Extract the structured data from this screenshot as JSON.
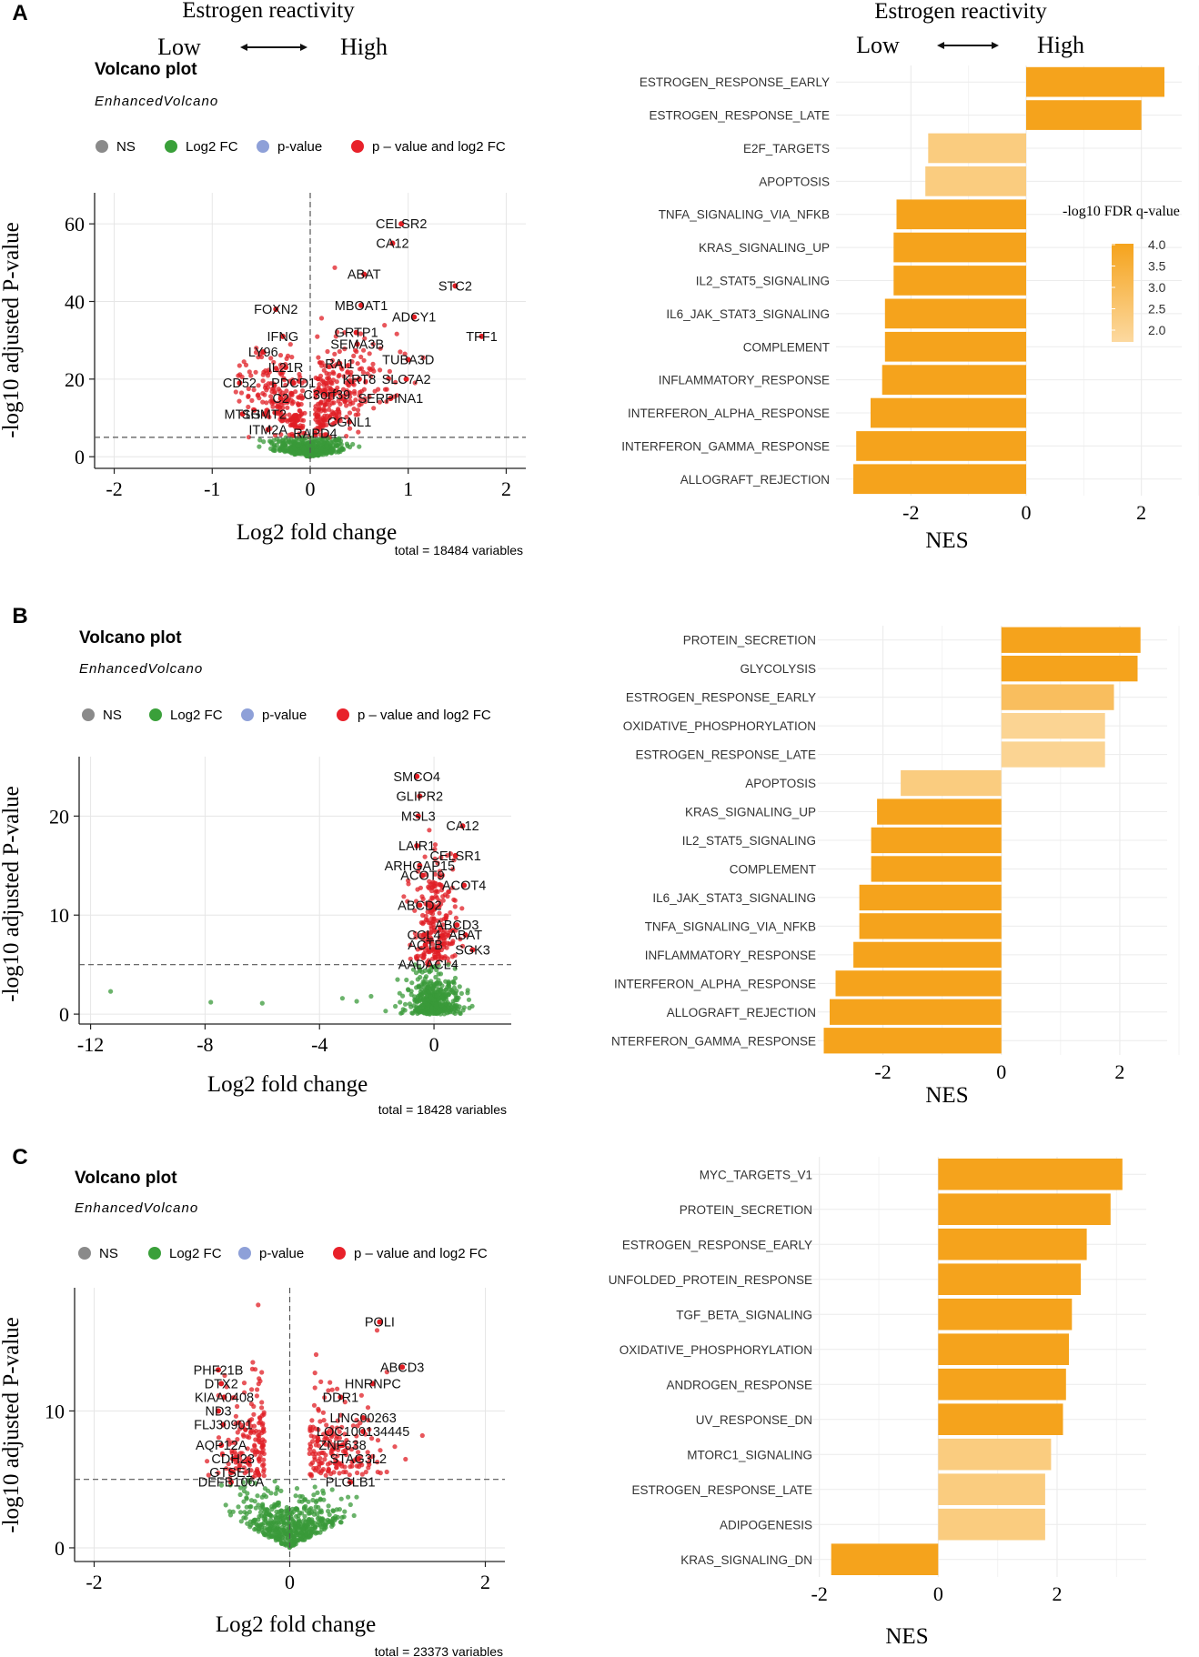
{
  "header": {
    "estrogen_reactivity": "Estrogen reactivity",
    "low": "Low",
    "high": "High"
  },
  "panels": [
    {
      "letter": "A",
      "volcano": {
        "title": "Volcano plot",
        "subtitle": "EnhancedVolcano",
        "legend": [
          "NS",
          "Log2 FC",
          "p-value",
          "p – value and log2 FC"
        ],
        "xlabel": "Log2 fold change",
        "ylabel": "-log10 adjusted P-value",
        "caption": "total = 18484 variables",
        "xlim": [
          -2.2,
          2.2
        ],
        "ylim": [
          -3,
          68
        ],
        "xticks": [
          -2,
          -1,
          0,
          1,
          2
        ],
        "xtick_labels": [
          "-2",
          "-1",
          "0",
          "1",
          "2"
        ],
        "yticks": [
          0,
          20,
          40,
          60
        ],
        "ytick_labels": [
          "0",
          "20",
          "40",
          "60"
        ],
        "threshold_y": 5,
        "threshold_x": 0,
        "gene_labels": [
          {
            "label": "CELSR2",
            "x": 0.93,
            "y": 60
          },
          {
            "label": "CA12",
            "x": 0.84,
            "y": 55
          },
          {
            "label": "ABAT",
            "x": 0.55,
            "y": 47
          },
          {
            "label": "STC2",
            "x": 1.48,
            "y": 44
          },
          {
            "label": "FOXN2",
            "x": -0.35,
            "y": 38
          },
          {
            "label": "MBOAT1",
            "x": 0.52,
            "y": 39
          },
          {
            "label": "ADCY1",
            "x": 1.06,
            "y": 36
          },
          {
            "label": "TFF1",
            "x": 1.75,
            "y": 31
          },
          {
            "label": "IFNG",
            "x": -0.28,
            "y": 31
          },
          {
            "label": "GRTP1",
            "x": 0.47,
            "y": 32
          },
          {
            "label": "SEMA3B",
            "x": 0.48,
            "y": 29
          },
          {
            "label": "LY96",
            "x": -0.48,
            "y": 27
          },
          {
            "label": "TUBA3D",
            "x": 1.0,
            "y": 25
          },
          {
            "label": "IL21R",
            "x": -0.25,
            "y": 23
          },
          {
            "label": "RAI1",
            "x": 0.3,
            "y": 24
          },
          {
            "label": "KRT8",
            "x": 0.5,
            "y": 20
          },
          {
            "label": "SLC7A2",
            "x": 0.98,
            "y": 20
          },
          {
            "label": "CD52",
            "x": -0.72,
            "y": 19
          },
          {
            "label": "PDCD1",
            "x": -0.17,
            "y": 19
          },
          {
            "label": "C2",
            "x": -0.3,
            "y": 15
          },
          {
            "label": "C3orf39",
            "x": 0.17,
            "y": 16
          },
          {
            "label": "SERPINA1",
            "x": 0.82,
            "y": 15
          },
          {
            "label": "MT1G",
            "x": -0.69,
            "y": 11
          },
          {
            "label": "SHMT2",
            "x": -0.47,
            "y": 11
          },
          {
            "label": "CGNL1",
            "x": 0.4,
            "y": 9
          },
          {
            "label": "ITM2A",
            "x": -0.43,
            "y": 7
          },
          {
            "label": "RAPD4",
            "x": 0.05,
            "y": 6
          }
        ]
      },
      "gsea": {
        "xlabel": "NES",
        "xlim": [
          -3.3,
          2.7
        ],
        "xticks": [
          -2,
          0,
          2
        ],
        "xtick_labels": [
          "-2",
          "0",
          "2"
        ],
        "legend_title": "-log10 FDR q-value",
        "legend_ticks": [
          "4.0",
          "3.5",
          "3.0",
          "2.5",
          "2.0"
        ],
        "categories": [
          "ESTROGEN_RESPONSE_EARLY",
          "ESTROGEN_RESPONSE_LATE",
          "E2F_TARGETS",
          "APOPTOSIS",
          "TNFA_SIGNALING_VIA_NFKB",
          "KRAS_SIGNALING_UP",
          "IL2_STAT5_SIGNALING",
          "IL6_JAK_STAT3_SIGNALING",
          "COMPLEMENT",
          "INFLAMMATORY_RESPONSE",
          "INTERFERON_ALPHA_RESPONSE",
          "INTERFERON_GAMMA_RESPONSE",
          "ALLOGRAFT_REJECTION"
        ],
        "values": [
          2.4,
          2.0,
          -1.7,
          -1.75,
          -2.25,
          -2.3,
          -2.3,
          -2.45,
          -2.45,
          -2.5,
          -2.7,
          -2.95,
          -3.0
        ],
        "fdr": [
          4.0,
          4.0,
          2.5,
          2.5,
          4.0,
          4.0,
          4.0,
          4.0,
          4.0,
          4.0,
          4.0,
          4.0,
          4.0
        ]
      }
    },
    {
      "letter": "B",
      "volcano": {
        "title": "Volcano plot",
        "subtitle": "EnhancedVolcano",
        "legend": [
          "NS",
          "Log2 FC",
          "p-value",
          "p – value and log2 FC"
        ],
        "xlabel": "Log2 fold change",
        "ylabel": "-log10 adjusted P-value",
        "caption": "total = 18428 variables",
        "xlim": [
          -12.4,
          2.7
        ],
        "ylim": [
          -1,
          26
        ],
        "xticks": [
          -12,
          -8,
          -4,
          0
        ],
        "xtick_labels": [
          "-12",
          "-8",
          "-4",
          "0"
        ],
        "yticks": [
          0,
          10,
          20
        ],
        "ytick_labels": [
          "0",
          "10",
          "20"
        ],
        "threshold_y": 5,
        "threshold_x": null,
        "gene_labels": [
          {
            "label": "SMCO4",
            "x": -0.6,
            "y": 24
          },
          {
            "label": "GLIPR2",
            "x": -0.5,
            "y": 22
          },
          {
            "label": "MSL3",
            "x": -0.55,
            "y": 20
          },
          {
            "label": "CA12",
            "x": 1.0,
            "y": 19
          },
          {
            "label": "LAIR1",
            "x": -0.6,
            "y": 17
          },
          {
            "label": "CELSR1",
            "x": 0.75,
            "y": 16
          },
          {
            "label": "ARHGAP15",
            "x": -0.5,
            "y": 15
          },
          {
            "label": "ACOT9",
            "x": -0.4,
            "y": 14
          },
          {
            "label": "ACOT4",
            "x": 1.05,
            "y": 13
          },
          {
            "label": "ABCD2",
            "x": -0.5,
            "y": 11
          },
          {
            "label": "ABCD3",
            "x": 0.8,
            "y": 9
          },
          {
            "label": "CCL4",
            "x": -0.35,
            "y": 8
          },
          {
            "label": "ABAT",
            "x": 1.1,
            "y": 8
          },
          {
            "label": "ACTB",
            "x": -0.3,
            "y": 7
          },
          {
            "label": "SGK3",
            "x": 1.35,
            "y": 6.5
          },
          {
            "label": "AADACL4",
            "x": -0.2,
            "y": 5
          }
        ]
      },
      "gsea": {
        "xlabel": "NES",
        "xlim": [
          -3.1,
          2.8
        ],
        "xticks": [
          -2,
          0,
          2
        ],
        "xtick_labels": [
          "-2",
          "0",
          "2"
        ],
        "categories": [
          "PROTEIN_SECRETION",
          "GLYCOLYSIS",
          "ESTROGEN_RESPONSE_EARLY",
          "OXIDATIVE_PHOSPHORYLATION",
          "ESTROGEN_RESPONSE_LATE",
          "APOPTOSIS",
          "KRAS_SIGNALING_UP",
          "IL2_STAT5_SIGNALING",
          "COMPLEMENT",
          "IL6_JAK_STAT3_SIGNALING",
          "TNFA_SIGNALING_VIA_NFKB",
          "INFLAMMATORY_RESPONSE",
          "INTERFERON_ALPHA_RESPONSE",
          "ALLOGRAFT_REJECTION",
          "NTERFERON_GAMMA_RESPONSE"
        ],
        "values": [
          2.35,
          2.3,
          1.9,
          1.75,
          1.75,
          -1.7,
          -2.1,
          -2.2,
          -2.2,
          -2.4,
          -2.4,
          -2.5,
          -2.8,
          -2.9,
          -3.0
        ],
        "fdr": [
          4.0,
          4.0,
          3.0,
          2.2,
          2.2,
          2.5,
          4.0,
          4.0,
          4.0,
          4.0,
          4.0,
          4.0,
          4.0,
          4.0,
          4.0
        ]
      }
    },
    {
      "letter": "C",
      "volcano": {
        "title": "Volcano plot",
        "subtitle": "EnhancedVolcano",
        "legend": [
          "NS",
          "Log2 FC",
          "p-value",
          "p – value and log2 FC"
        ],
        "xlabel": "Log2 fold change",
        "ylabel": "-log10 adjusted P-value",
        "caption": "total = 23373 variables",
        "xlim": [
          -2.2,
          2.2
        ],
        "ylim": [
          -1,
          19
        ],
        "xticks": [
          -2,
          0,
          2
        ],
        "xtick_labels": [
          "-2",
          "0",
          "2"
        ],
        "yticks": [
          0,
          10
        ],
        "ytick_labels": [
          "0",
          "10"
        ],
        "threshold_y": 5,
        "threshold_x": 0,
        "gene_labels": [
          {
            "label": "POLI",
            "x": 0.92,
            "y": 16.5
          },
          {
            "label": "PHF21B",
            "x": -0.73,
            "y": 13
          },
          {
            "label": "ABCD3",
            "x": 1.15,
            "y": 13.2
          },
          {
            "label": "DTX2",
            "x": -0.7,
            "y": 12
          },
          {
            "label": "HNRNPC",
            "x": 0.85,
            "y": 12
          },
          {
            "label": "KIAA0408",
            "x": -0.67,
            "y": 11
          },
          {
            "label": "DDR1",
            "x": 0.52,
            "y": 11
          },
          {
            "label": "ND3",
            "x": -0.73,
            "y": 10
          },
          {
            "label": "LINC00263",
            "x": 0.75,
            "y": 9.5
          },
          {
            "label": "FLJ30901",
            "x": -0.68,
            "y": 9
          },
          {
            "label": "LOC100134445",
            "x": 0.75,
            "y": 8.5
          },
          {
            "label": "ZNF638",
            "x": 0.54,
            "y": 7.5
          },
          {
            "label": "AQP12A",
            "x": -0.7,
            "y": 7.5
          },
          {
            "label": "CDH23",
            "x": -0.58,
            "y": 6.5
          },
          {
            "label": "STAG3L2",
            "x": 0.7,
            "y": 6.5
          },
          {
            "label": "GTSE1",
            "x": -0.6,
            "y": 5.5
          },
          {
            "label": "DEFB106A",
            "x": -0.6,
            "y": 4.8
          },
          {
            "label": "PLGLB1",
            "x": 0.62,
            "y": 4.8
          }
        ]
      },
      "gsea": {
        "xlabel": "NES",
        "xlim": [
          -2.5,
          3.5
        ],
        "xticks": [
          -2,
          0,
          2
        ],
        "xtick_labels": [
          "-2",
          "0",
          "2"
        ],
        "categories": [
          "MYC_TARGETS_V1",
          "PROTEIN_SECRETION",
          "ESTROGEN_RESPONSE_EARLY",
          "UNFOLDED_PROTEIN_RESPONSE",
          "TGF_BETA_SIGNALING",
          "OXIDATIVE_PHOSPHORYLATION",
          "ANDROGEN_RESPONSE",
          "UV_RESPONSE_DN",
          "MTORC1_SIGNALING",
          "ESTROGEN_RESPONSE_LATE",
          "ADIPOGENESIS",
          "KRAS_SIGNALING_DN"
        ],
        "values": [
          3.1,
          2.9,
          2.5,
          2.4,
          2.25,
          2.2,
          2.15,
          2.1,
          1.9,
          1.8,
          1.8,
          -1.8
        ],
        "fdr": [
          4.0,
          4.0,
          4.0,
          4.0,
          4.0,
          4.0,
          4.0,
          4.0,
          2.5,
          2.5,
          2.5,
          4.0
        ]
      }
    }
  ],
  "colors": {
    "ns": "#8a8a8a",
    "log2fc": "#3aa03a",
    "pvalue": "#8ea0d8",
    "both": "#e8212a",
    "green_points": "#3a9a3a",
    "red_points": "#e01e24",
    "bar_high": "#f5a31c",
    "bar_low": "#fcd9a0"
  },
  "chart_data": [
    {
      "type": "scatter",
      "title": "Volcano plot",
      "subtitle": "EnhancedVolcano",
      "xlabel": "Log2 fold change",
      "ylabel": "-log10 adjusted P-value",
      "panel": "A",
      "xlim": [
        -2.2,
        2.2
      ],
      "ylim": [
        -3,
        68
      ],
      "caption": "total = 18484 variables"
    },
    {
      "type": "bar",
      "panel": "A",
      "xlabel": "NES",
      "legend_title": "-log10 FDR q-value",
      "categories": [
        "ESTROGEN_RESPONSE_EARLY",
        "ESTROGEN_RESPONSE_LATE",
        "E2F_TARGETS",
        "APOPTOSIS",
        "TNFA_SIGNALING_VIA_NFKB",
        "KRAS_SIGNALING_UP",
        "IL2_STAT5_SIGNALING",
        "IL6_JAK_STAT3_SIGNALING",
        "COMPLEMENT",
        "INFLAMMATORY_RESPONSE",
        "INTERFERON_ALPHA_RESPONSE",
        "INTERFERON_GAMMA_RESPONSE",
        "ALLOGRAFT_REJECTION"
      ],
      "values": [
        2.4,
        2.0,
        -1.7,
        -1.75,
        -2.25,
        -2.3,
        -2.3,
        -2.45,
        -2.45,
        -2.5,
        -2.7,
        -2.95,
        -3.0
      ]
    },
    {
      "type": "scatter",
      "title": "Volcano plot",
      "subtitle": "EnhancedVolcano",
      "xlabel": "Log2 fold change",
      "ylabel": "-log10 adjusted P-value",
      "panel": "B",
      "xlim": [
        -12.4,
        2.7
      ],
      "ylim": [
        -1,
        26
      ],
      "caption": "total = 18428 variables"
    },
    {
      "type": "bar",
      "panel": "B",
      "xlabel": "NES",
      "categories": [
        "PROTEIN_SECRETION",
        "GLYCOLYSIS",
        "ESTROGEN_RESPONSE_EARLY",
        "OXIDATIVE_PHOSPHORYLATION",
        "ESTROGEN_RESPONSE_LATE",
        "APOPTOSIS",
        "KRAS_SIGNALING_UP",
        "IL2_STAT5_SIGNALING",
        "COMPLEMENT",
        "IL6_JAK_STAT3_SIGNALING",
        "TNFA_SIGNALING_VIA_NFKB",
        "INFLAMMATORY_RESPONSE",
        "INTERFERON_ALPHA_RESPONSE",
        "ALLOGRAFT_REJECTION",
        "NTERFERON_GAMMA_RESPONSE"
      ],
      "values": [
        2.35,
        2.3,
        1.9,
        1.75,
        1.75,
        -1.7,
        -2.1,
        -2.2,
        -2.2,
        -2.4,
        -2.4,
        -2.5,
        -2.8,
        -2.9,
        -3.0
      ]
    },
    {
      "type": "scatter",
      "title": "Volcano plot",
      "subtitle": "EnhancedVolcano",
      "xlabel": "Log2 fold change",
      "ylabel": "-log10 adjusted P-value",
      "panel": "C",
      "xlim": [
        -2.2,
        2.2
      ],
      "ylim": [
        -1,
        19
      ],
      "caption": "total = 23373 variables"
    },
    {
      "type": "bar",
      "panel": "C",
      "xlabel": "NES",
      "categories": [
        "MYC_TARGETS_V1",
        "PROTEIN_SECRETION",
        "ESTROGEN_RESPONSE_EARLY",
        "UNFOLDED_PROTEIN_RESPONSE",
        "TGF_BETA_SIGNALING",
        "OXIDATIVE_PHOSPHORYLATION",
        "ANDROGEN_RESPONSE",
        "UV_RESPONSE_DN",
        "MTORC1_SIGNALING",
        "ESTROGEN_RESPONSE_LATE",
        "ADIPOGENESIS",
        "KRAS_SIGNALING_DN"
      ],
      "values": [
        3.1,
        2.9,
        2.5,
        2.4,
        2.25,
        2.2,
        2.15,
        2.1,
        1.9,
        1.8,
        1.8,
        -1.8
      ]
    }
  ]
}
